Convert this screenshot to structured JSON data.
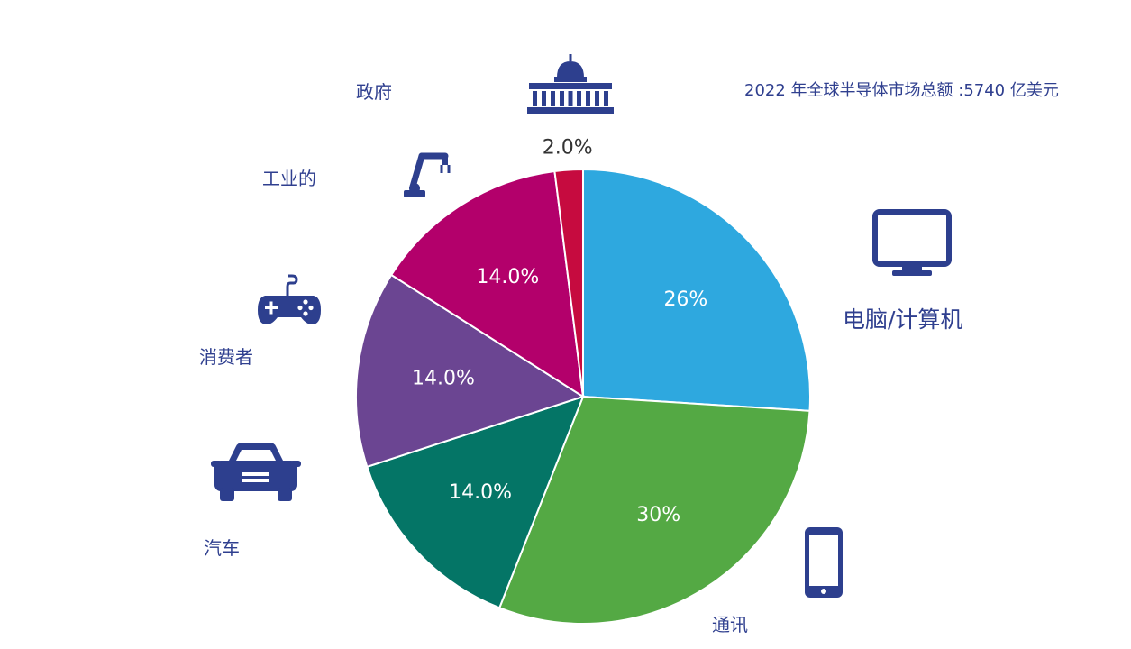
{
  "chart_data": {
    "type": "pie",
    "title": "2022 年全球半导体市场总额 :5740 亿美元",
    "slices": [
      {
        "label": "电脑/计算机",
        "value": 26,
        "display": "26%",
        "color": "#2ea8df",
        "icon": "monitor-icon"
      },
      {
        "label": "通讯",
        "value": 30,
        "display": "30%",
        "color": "#54a944",
        "icon": "smartphone-icon"
      },
      {
        "label": "汽车",
        "value": 14.0,
        "display": "14.0%",
        "color": "#047566",
        "icon": "car-icon"
      },
      {
        "label": "消费者",
        "value": 14.0,
        "display": "14.0%",
        "color": "#6b4592",
        "icon": "gamepad-icon"
      },
      {
        "label": "工业的",
        "value": 14.0,
        "display": "14.0%",
        "color": "#b3006b",
        "icon": "robot-arm-icon"
      },
      {
        "label": "政府",
        "value": 2.0,
        "display": "2.0%",
        "color": "#c60b3f",
        "icon": "capitol-building-icon"
      }
    ]
  },
  "colors": {
    "icon": "#2d3f8e",
    "text": "#2f3f8f"
  }
}
